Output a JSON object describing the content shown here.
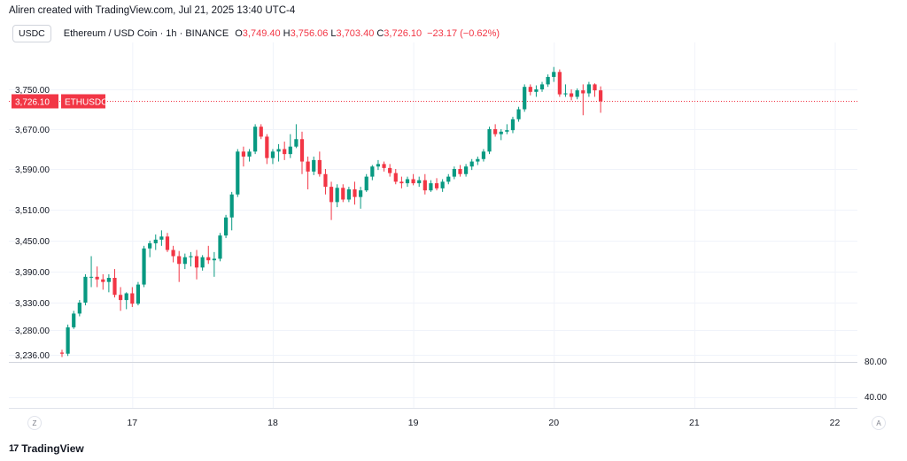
{
  "header": {
    "credit": "Aliren created with TradingView.com, Jul 21, 2025 13:40 UTC-4",
    "symbol_badge": "USDC",
    "title": "Ethereum / USD Coin · 1h · BINANCE",
    "open_label": "O",
    "open_value": "3,749.40",
    "high_label": "H",
    "high_value": "3,756.06",
    "low_label": "L",
    "low_value": "3,703.40",
    "close_label": "C",
    "close_value": "3,726.10",
    "change": "−23.17 (−0.62%)"
  },
  "footer": {
    "brand": "TradingView",
    "brand_mark": "17",
    "left_button": "Z",
    "right_button": "A"
  },
  "colors": {
    "up": "#089981",
    "down": "#f23645",
    "grid": "#f0f3fa",
    "text": "#131722"
  },
  "chart_data": {
    "type": "candlestick",
    "symbol": "ETHUSDC",
    "timeframe": "1h",
    "price_ticks": [
      "3,750.00",
      "3,670.00",
      "3,590.00",
      "3,510.00",
      "3,450.00",
      "3,390.00",
      "3,330.00",
      "3,280.00",
      "3,236.00"
    ],
    "price_tick_values": [
      3750,
      3670,
      3590,
      3510,
      3450,
      3390,
      3330,
      3280,
      3236
    ],
    "last_price_label": "3,726.10",
    "last_price_value": 3726.1,
    "last_symbol_label": "ETHUSDC",
    "indicator_ticks": [
      "80.00",
      "40.00"
    ],
    "x_ticks": [
      "17",
      "18",
      "19",
      "20",
      "21",
      "22"
    ],
    "x_tick_index": [
      12,
      36,
      60,
      84,
      108,
      132
    ],
    "candles": [
      {
        "o": 3240,
        "h": 3245,
        "l": 3232,
        "c": 3238
      },
      {
        "o": 3238,
        "h": 3290,
        "l": 3234,
        "c": 3285
      },
      {
        "o": 3285,
        "h": 3315,
        "l": 3282,
        "c": 3310
      },
      {
        "o": 3310,
        "h": 3335,
        "l": 3305,
        "c": 3330
      },
      {
        "o": 3330,
        "h": 3385,
        "l": 3325,
        "c": 3380
      },
      {
        "o": 3380,
        "h": 3420,
        "l": 3360,
        "c": 3380
      },
      {
        "o": 3380,
        "h": 3400,
        "l": 3360,
        "c": 3375
      },
      {
        "o": 3375,
        "h": 3385,
        "l": 3355,
        "c": 3370
      },
      {
        "o": 3370,
        "h": 3385,
        "l": 3350,
        "c": 3378
      },
      {
        "o": 3378,
        "h": 3395,
        "l": 3340,
        "c": 3345
      },
      {
        "o": 3345,
        "h": 3360,
        "l": 3315,
        "c": 3335
      },
      {
        "o": 3335,
        "h": 3350,
        "l": 3318,
        "c": 3348
      },
      {
        "o": 3348,
        "h": 3360,
        "l": 3322,
        "c": 3328
      },
      {
        "o": 3328,
        "h": 3370,
        "l": 3325,
        "c": 3365
      },
      {
        "o": 3365,
        "h": 3440,
        "l": 3360,
        "c": 3435
      },
      {
        "o": 3435,
        "h": 3450,
        "l": 3418,
        "c": 3445
      },
      {
        "o": 3445,
        "h": 3462,
        "l": 3432,
        "c": 3452
      },
      {
        "o": 3452,
        "h": 3470,
        "l": 3440,
        "c": 3458
      },
      {
        "o": 3458,
        "h": 3465,
        "l": 3428,
        "c": 3432
      },
      {
        "o": 3432,
        "h": 3440,
        "l": 3408,
        "c": 3420
      },
      {
        "o": 3420,
        "h": 3430,
        "l": 3370,
        "c": 3405
      },
      {
        "o": 3405,
        "h": 3425,
        "l": 3395,
        "c": 3418
      },
      {
        "o": 3418,
        "h": 3428,
        "l": 3400,
        "c": 3420
      },
      {
        "o": 3420,
        "h": 3432,
        "l": 3375,
        "c": 3398
      },
      {
        "o": 3398,
        "h": 3422,
        "l": 3392,
        "c": 3418
      },
      {
        "o": 3418,
        "h": 3440,
        "l": 3405,
        "c": 3412
      },
      {
        "o": 3412,
        "h": 3428,
        "l": 3380,
        "c": 3415
      },
      {
        "o": 3415,
        "h": 3465,
        "l": 3410,
        "c": 3460
      },
      {
        "o": 3460,
        "h": 3500,
        "l": 3455,
        "c": 3495
      },
      {
        "o": 3495,
        "h": 3545,
        "l": 3470,
        "c": 3540
      },
      {
        "o": 3540,
        "h": 3630,
        "l": 3535,
        "c": 3625
      },
      {
        "o": 3625,
        "h": 3635,
        "l": 3595,
        "c": 3615
      },
      {
        "o": 3615,
        "h": 3630,
        "l": 3605,
        "c": 3625
      },
      {
        "o": 3625,
        "h": 3680,
        "l": 3620,
        "c": 3675
      },
      {
        "o": 3675,
        "h": 3680,
        "l": 3650,
        "c": 3655
      },
      {
        "o": 3655,
        "h": 3660,
        "l": 3600,
        "c": 3612
      },
      {
        "o": 3612,
        "h": 3630,
        "l": 3600,
        "c": 3625
      },
      {
        "o": 3625,
        "h": 3640,
        "l": 3605,
        "c": 3630
      },
      {
        "o": 3630,
        "h": 3645,
        "l": 3608,
        "c": 3620
      },
      {
        "o": 3620,
        "h": 3660,
        "l": 3612,
        "c": 3635
      },
      {
        "o": 3635,
        "h": 3680,
        "l": 3632,
        "c": 3650
      },
      {
        "o": 3650,
        "h": 3665,
        "l": 3580,
        "c": 3605
      },
      {
        "o": 3605,
        "h": 3615,
        "l": 3550,
        "c": 3585
      },
      {
        "o": 3585,
        "h": 3615,
        "l": 3578,
        "c": 3608
      },
      {
        "o": 3608,
        "h": 3625,
        "l": 3575,
        "c": 3580
      },
      {
        "o": 3580,
        "h": 3590,
        "l": 3540,
        "c": 3555
      },
      {
        "o": 3555,
        "h": 3565,
        "l": 3490,
        "c": 3525
      },
      {
        "o": 3525,
        "h": 3560,
        "l": 3515,
        "c": 3553
      },
      {
        "o": 3553,
        "h": 3560,
        "l": 3525,
        "c": 3530
      },
      {
        "o": 3530,
        "h": 3555,
        "l": 3525,
        "c": 3550
      },
      {
        "o": 3550,
        "h": 3565,
        "l": 3520,
        "c": 3535
      },
      {
        "o": 3535,
        "h": 3555,
        "l": 3512,
        "c": 3548
      },
      {
        "o": 3548,
        "h": 3580,
        "l": 3545,
        "c": 3575
      },
      {
        "o": 3575,
        "h": 3598,
        "l": 3568,
        "c": 3595
      },
      {
        "o": 3595,
        "h": 3608,
        "l": 3588,
        "c": 3600
      },
      {
        "o": 3600,
        "h": 3605,
        "l": 3585,
        "c": 3592
      },
      {
        "o": 3592,
        "h": 3600,
        "l": 3575,
        "c": 3582
      },
      {
        "o": 3582,
        "h": 3590,
        "l": 3560,
        "c": 3565
      },
      {
        "o": 3565,
        "h": 3575,
        "l": 3552,
        "c": 3562
      },
      {
        "o": 3562,
        "h": 3575,
        "l": 3555,
        "c": 3570
      },
      {
        "o": 3570,
        "h": 3580,
        "l": 3558,
        "c": 3562
      },
      {
        "o": 3562,
        "h": 3575,
        "l": 3555,
        "c": 3568
      },
      {
        "o": 3568,
        "h": 3580,
        "l": 3540,
        "c": 3548
      },
      {
        "o": 3548,
        "h": 3568,
        "l": 3545,
        "c": 3562
      },
      {
        "o": 3562,
        "h": 3572,
        "l": 3548,
        "c": 3552
      },
      {
        "o": 3552,
        "h": 3570,
        "l": 3545,
        "c": 3565
      },
      {
        "o": 3565,
        "h": 3580,
        "l": 3560,
        "c": 3575
      },
      {
        "o": 3575,
        "h": 3595,
        "l": 3570,
        "c": 3590
      },
      {
        "o": 3590,
        "h": 3598,
        "l": 3575,
        "c": 3580
      },
      {
        "o": 3580,
        "h": 3600,
        "l": 3575,
        "c": 3595
      },
      {
        "o": 3595,
        "h": 3610,
        "l": 3588,
        "c": 3605
      },
      {
        "o": 3605,
        "h": 3615,
        "l": 3598,
        "c": 3610
      },
      {
        "o": 3610,
        "h": 3630,
        "l": 3605,
        "c": 3625
      },
      {
        "o": 3625,
        "h": 3675,
        "l": 3620,
        "c": 3670
      },
      {
        "o": 3670,
        "h": 3680,
        "l": 3655,
        "c": 3660
      },
      {
        "o": 3660,
        "h": 3670,
        "l": 3648,
        "c": 3665
      },
      {
        "o": 3665,
        "h": 3680,
        "l": 3660,
        "c": 3668
      },
      {
        "o": 3668,
        "h": 3695,
        "l": 3662,
        "c": 3690
      },
      {
        "o": 3690,
        "h": 3715,
        "l": 3685,
        "c": 3710
      },
      {
        "o": 3710,
        "h": 3760,
        "l": 3705,
        "c": 3755
      },
      {
        "o": 3755,
        "h": 3760,
        "l": 3738,
        "c": 3745
      },
      {
        "o": 3745,
        "h": 3758,
        "l": 3735,
        "c": 3750
      },
      {
        "o": 3750,
        "h": 3765,
        "l": 3745,
        "c": 3760
      },
      {
        "o": 3760,
        "h": 3780,
        "l": 3755,
        "c": 3775
      },
      {
        "o": 3775,
        "h": 3795,
        "l": 3765,
        "c": 3785
      },
      {
        "o": 3785,
        "h": 3790,
        "l": 3735,
        "c": 3740
      },
      {
        "o": 3740,
        "h": 3760,
        "l": 3735,
        "c": 3742
      },
      {
        "o": 3742,
        "h": 3750,
        "l": 3728,
        "c": 3735
      },
      {
        "o": 3735,
        "h": 3752,
        "l": 3730,
        "c": 3748
      },
      {
        "o": 3748,
        "h": 3760,
        "l": 3698,
        "c": 3742
      },
      {
        "o": 3742,
        "h": 3765,
        "l": 3735,
        "c": 3760
      },
      {
        "o": 3760,
        "h": 3762,
        "l": 3735,
        "c": 3748
      },
      {
        "o": 3748,
        "h": 3756,
        "l": 3703,
        "c": 3726
      }
    ]
  }
}
